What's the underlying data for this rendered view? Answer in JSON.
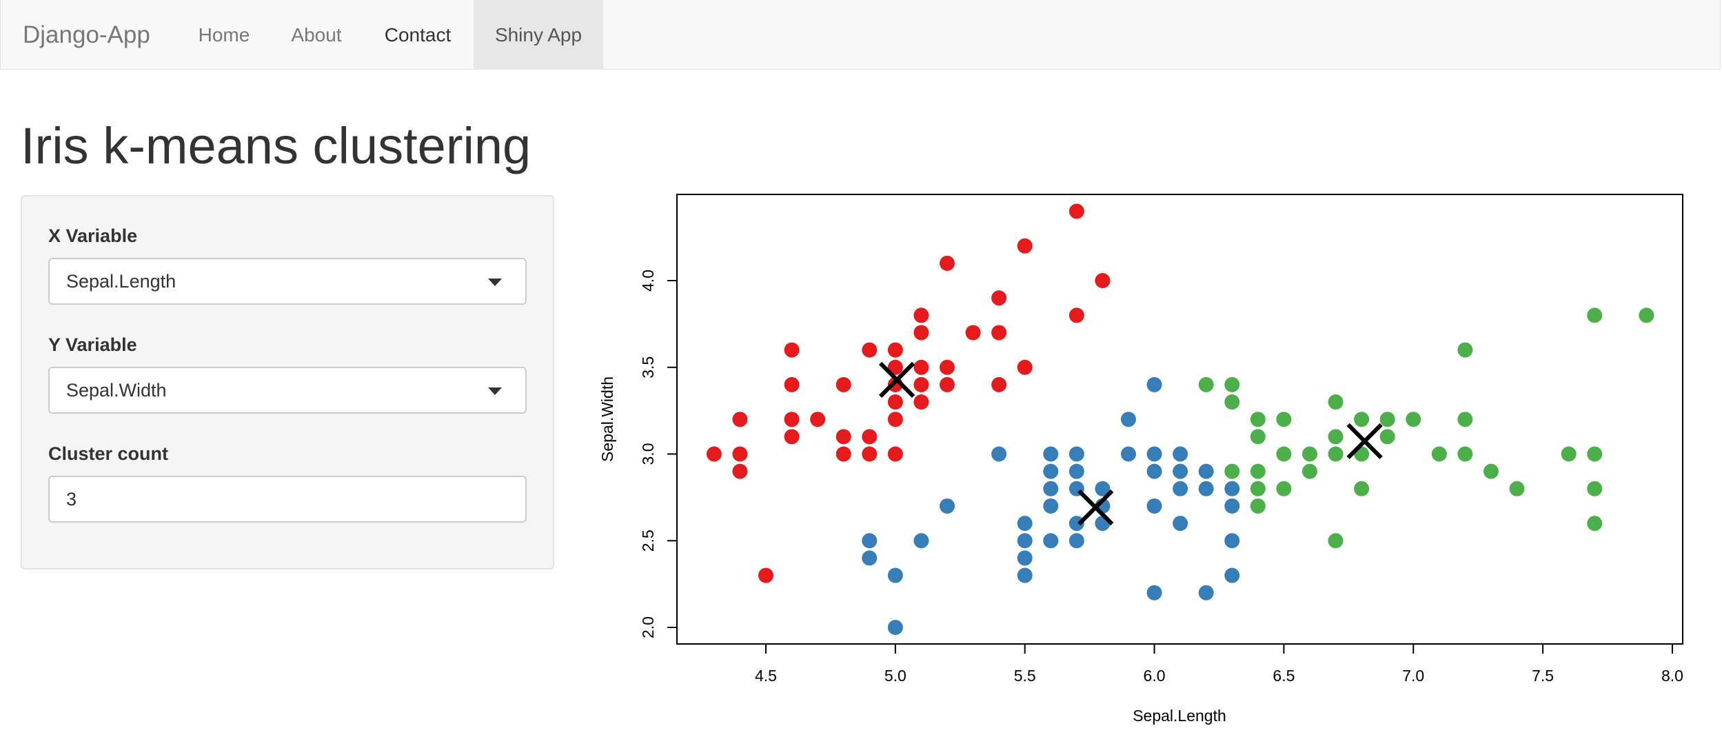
{
  "navbar": {
    "brand": "Django-App",
    "items": [
      {
        "label": "Home"
      },
      {
        "label": "About"
      },
      {
        "label": "Contact"
      },
      {
        "label": "Shiny App"
      }
    ]
  },
  "page": {
    "title": "Iris k-means clustering"
  },
  "sidebar": {
    "x_label": "X Variable",
    "x_value": "Sepal.Length",
    "y_label": "Y Variable",
    "y_value": "Sepal.Width",
    "k_label": "Cluster count",
    "k_value": "3"
  },
  "chart_data": {
    "type": "scatter",
    "xlabel": "Sepal.Length",
    "ylabel": "Sepal.Width",
    "xlim": [
      4.2,
      8.05
    ],
    "ylim": [
      1.92,
      4.5
    ],
    "xticks": [
      "4.5",
      "5.0",
      "5.5",
      "6.0",
      "6.5",
      "7.0",
      "7.5",
      "8.0"
    ],
    "yticks": [
      "2.0",
      "2.5",
      "3.0",
      "3.5",
      "4.0"
    ],
    "colors": {
      "cluster1": "#e41a1c",
      "cluster2": "#377eb8",
      "cluster3": "#4daf4a",
      "center": "#000000"
    },
    "series": [
      {
        "color": "#e41a1c",
        "points": [
          [
            4.3,
            3.0
          ],
          [
            4.4,
            3.2
          ],
          [
            4.4,
            3.0
          ],
          [
            4.4,
            2.9
          ],
          [
            4.5,
            2.3
          ],
          [
            4.6,
            3.6
          ],
          [
            4.6,
            3.4
          ],
          [
            4.6,
            3.2
          ],
          [
            4.6,
            3.1
          ],
          [
            4.7,
            3.2
          ],
          [
            4.8,
            3.4
          ],
          [
            4.8,
            3.1
          ],
          [
            4.8,
            3.0
          ],
          [
            4.9,
            3.6
          ],
          [
            4.9,
            3.1
          ],
          [
            4.9,
            3.0
          ],
          [
            5.0,
            3.6
          ],
          [
            5.0,
            3.5
          ],
          [
            5.0,
            3.4
          ],
          [
            5.0,
            3.3
          ],
          [
            5.0,
            3.2
          ],
          [
            5.0,
            3.0
          ],
          [
            5.1,
            3.8
          ],
          [
            5.1,
            3.7
          ],
          [
            5.1,
            3.5
          ],
          [
            5.1,
            3.4
          ],
          [
            5.1,
            3.3
          ],
          [
            5.2,
            4.1
          ],
          [
            5.2,
            3.5
          ],
          [
            5.2,
            3.4
          ],
          [
            5.3,
            3.7
          ],
          [
            5.4,
            3.9
          ],
          [
            5.4,
            3.7
          ],
          [
            5.4,
            3.4
          ],
          [
            5.5,
            4.2
          ],
          [
            5.5,
            3.5
          ],
          [
            5.7,
            4.4
          ],
          [
            5.7,
            3.8
          ],
          [
            5.8,
            4.0
          ]
        ]
      },
      {
        "color": "#377eb8",
        "points": [
          [
            4.9,
            2.5
          ],
          [
            4.9,
            2.4
          ],
          [
            5.0,
            2.3
          ],
          [
            5.0,
            2.0
          ],
          [
            5.1,
            2.5
          ],
          [
            5.2,
            2.7
          ],
          [
            5.4,
            3.0
          ],
          [
            5.5,
            2.6
          ],
          [
            5.5,
            2.5
          ],
          [
            5.5,
            2.4
          ],
          [
            5.5,
            2.3
          ],
          [
            5.6,
            3.0
          ],
          [
            5.6,
            2.9
          ],
          [
            5.6,
            2.8
          ],
          [
            5.6,
            2.7
          ],
          [
            5.6,
            2.5
          ],
          [
            5.7,
            3.0
          ],
          [
            5.7,
            2.9
          ],
          [
            5.7,
            2.8
          ],
          [
            5.7,
            2.6
          ],
          [
            5.7,
            2.5
          ],
          [
            5.8,
            2.8
          ],
          [
            5.8,
            2.7
          ],
          [
            5.8,
            2.6
          ],
          [
            5.9,
            3.2
          ],
          [
            5.9,
            3.0
          ],
          [
            6.0,
            3.4
          ],
          [
            6.0,
            3.0
          ],
          [
            6.0,
            2.9
          ],
          [
            6.0,
            2.7
          ],
          [
            6.0,
            2.2
          ],
          [
            6.1,
            3.0
          ],
          [
            6.1,
            2.9
          ],
          [
            6.1,
            2.8
          ],
          [
            6.1,
            2.6
          ],
          [
            6.2,
            2.9
          ],
          [
            6.2,
            2.8
          ],
          [
            6.2,
            2.2
          ],
          [
            6.3,
            2.8
          ],
          [
            6.3,
            2.7
          ],
          [
            6.3,
            2.5
          ],
          [
            6.3,
            2.3
          ]
        ]
      },
      {
        "color": "#4daf4a",
        "points": [
          [
            6.2,
            3.4
          ],
          [
            6.3,
            3.4
          ],
          [
            6.3,
            3.3
          ],
          [
            6.3,
            2.9
          ],
          [
            6.4,
            3.2
          ],
          [
            6.4,
            3.1
          ],
          [
            6.4,
            2.9
          ],
          [
            6.4,
            2.8
          ],
          [
            6.4,
            2.7
          ],
          [
            6.5,
            3.2
          ],
          [
            6.5,
            3.0
          ],
          [
            6.5,
            2.8
          ],
          [
            6.6,
            3.0
          ],
          [
            6.6,
            2.9
          ],
          [
            6.7,
            3.3
          ],
          [
            6.7,
            3.1
          ],
          [
            6.7,
            3.0
          ],
          [
            6.7,
            2.5
          ],
          [
            6.8,
            3.2
          ],
          [
            6.8,
            3.0
          ],
          [
            6.8,
            2.8
          ],
          [
            6.9,
            3.2
          ],
          [
            6.9,
            3.1
          ],
          [
            7.0,
            3.2
          ],
          [
            7.1,
            3.0
          ],
          [
            7.2,
            3.6
          ],
          [
            7.2,
            3.2
          ],
          [
            7.2,
            3.0
          ],
          [
            7.3,
            2.9
          ],
          [
            7.4,
            2.8
          ],
          [
            7.6,
            3.0
          ],
          [
            7.7,
            3.8
          ],
          [
            7.7,
            3.0
          ],
          [
            7.7,
            2.8
          ],
          [
            7.7,
            2.6
          ],
          [
            7.9,
            3.8
          ]
        ]
      }
    ],
    "centers": [
      [
        5.006,
        3.428
      ],
      [
        5.773,
        2.692
      ],
      [
        6.812,
        3.074
      ]
    ]
  }
}
